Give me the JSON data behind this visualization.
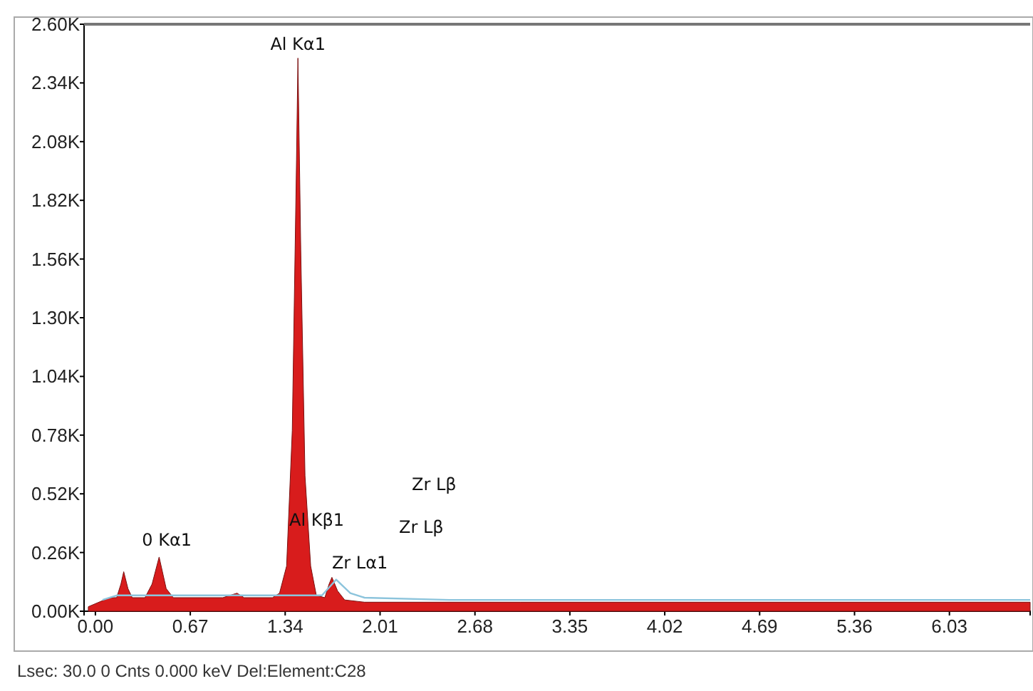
{
  "chart_data": {
    "type": "area",
    "xlim": [
      -0.08,
      6.6
    ],
    "xticks": [
      {
        "value": 0,
        "label": "0.00"
      },
      0.67,
      1.34,
      2.01,
      2.68,
      3.35,
      4.02,
      4.69,
      5.36,
      6.03
    ],
    "ylim": [
      0,
      2.6
    ],
    "yticks": [
      {
        "value": 0,
        "label": "0.00K"
      },
      {
        "value": 0.26,
        "label": "0.26K"
      },
      {
        "value": 0.52,
        "label": "0.52K"
      },
      {
        "value": 0.78,
        "label": "0.78K"
      },
      {
        "value": 1.04,
        "label": "1.04K"
      },
      {
        "value": 1.3,
        "label": "1.30K"
      },
      {
        "value": 1.56,
        "label": "1.56K"
      },
      {
        "value": 1.82,
        "label": "1.82K"
      },
      {
        "value": 2.08,
        "label": "2.08K"
      },
      {
        "value": 2.34,
        "label": "2.34K"
      },
      {
        "value": 2.6,
        "label": "2.60K"
      }
    ],
    "series": [
      {
        "color": "#d81c1c",
        "x": [
          -0.05,
          0.1,
          0.15,
          0.18,
          0.2,
          0.23,
          0.26,
          0.35,
          0.4,
          0.45,
          0.5,
          0.55,
          0.9,
          1.0,
          1.05,
          1.25,
          1.3,
          1.35,
          1.39,
          1.42,
          1.43,
          1.45,
          1.48,
          1.52,
          1.56,
          1.62,
          1.65,
          1.67,
          1.71,
          1.76,
          1.9,
          3.0,
          6.6
        ],
        "values": [
          0.02,
          0.06,
          0.06,
          0.12,
          0.175,
          0.1,
          0.06,
          0.06,
          0.12,
          0.24,
          0.1,
          0.06,
          0.06,
          0.08,
          0.06,
          0.06,
          0.08,
          0.2,
          0.8,
          2.0,
          2.45,
          1.6,
          0.6,
          0.2,
          0.07,
          0.06,
          0.12,
          0.15,
          0.09,
          0.05,
          0.04,
          0.04,
          0.04
        ]
      },
      {
        "type": "line",
        "color": "#8cc4dc",
        "x": [
          0.05,
          0.15,
          0.3,
          0.6,
          1.0,
          1.6,
          1.7,
          1.8,
          1.9,
          2.5,
          4.0,
          6.6
        ],
        "values": [
          0.05,
          0.07,
          0.07,
          0.07,
          0.07,
          0.07,
          0.14,
          0.08,
          0.06,
          0.05,
          0.05,
          0.05
        ]
      }
    ],
    "annotations": [
      {
        "text": "Al Kα1",
        "x": 1.43,
        "y": 2.45
      },
      {
        "text": "0 Kα1",
        "x": 0.45,
        "y": 0.24
      },
      {
        "text": "Zr Lα1",
        "x": 1.67,
        "y": 0.15
      },
      "Al Kβ1",
      "Zr Lβ",
      "Zr Lβ",
      "Lsec: 30.0   0 Cnts   0.000 keV   Del:Element:C28"
    ]
  }
}
